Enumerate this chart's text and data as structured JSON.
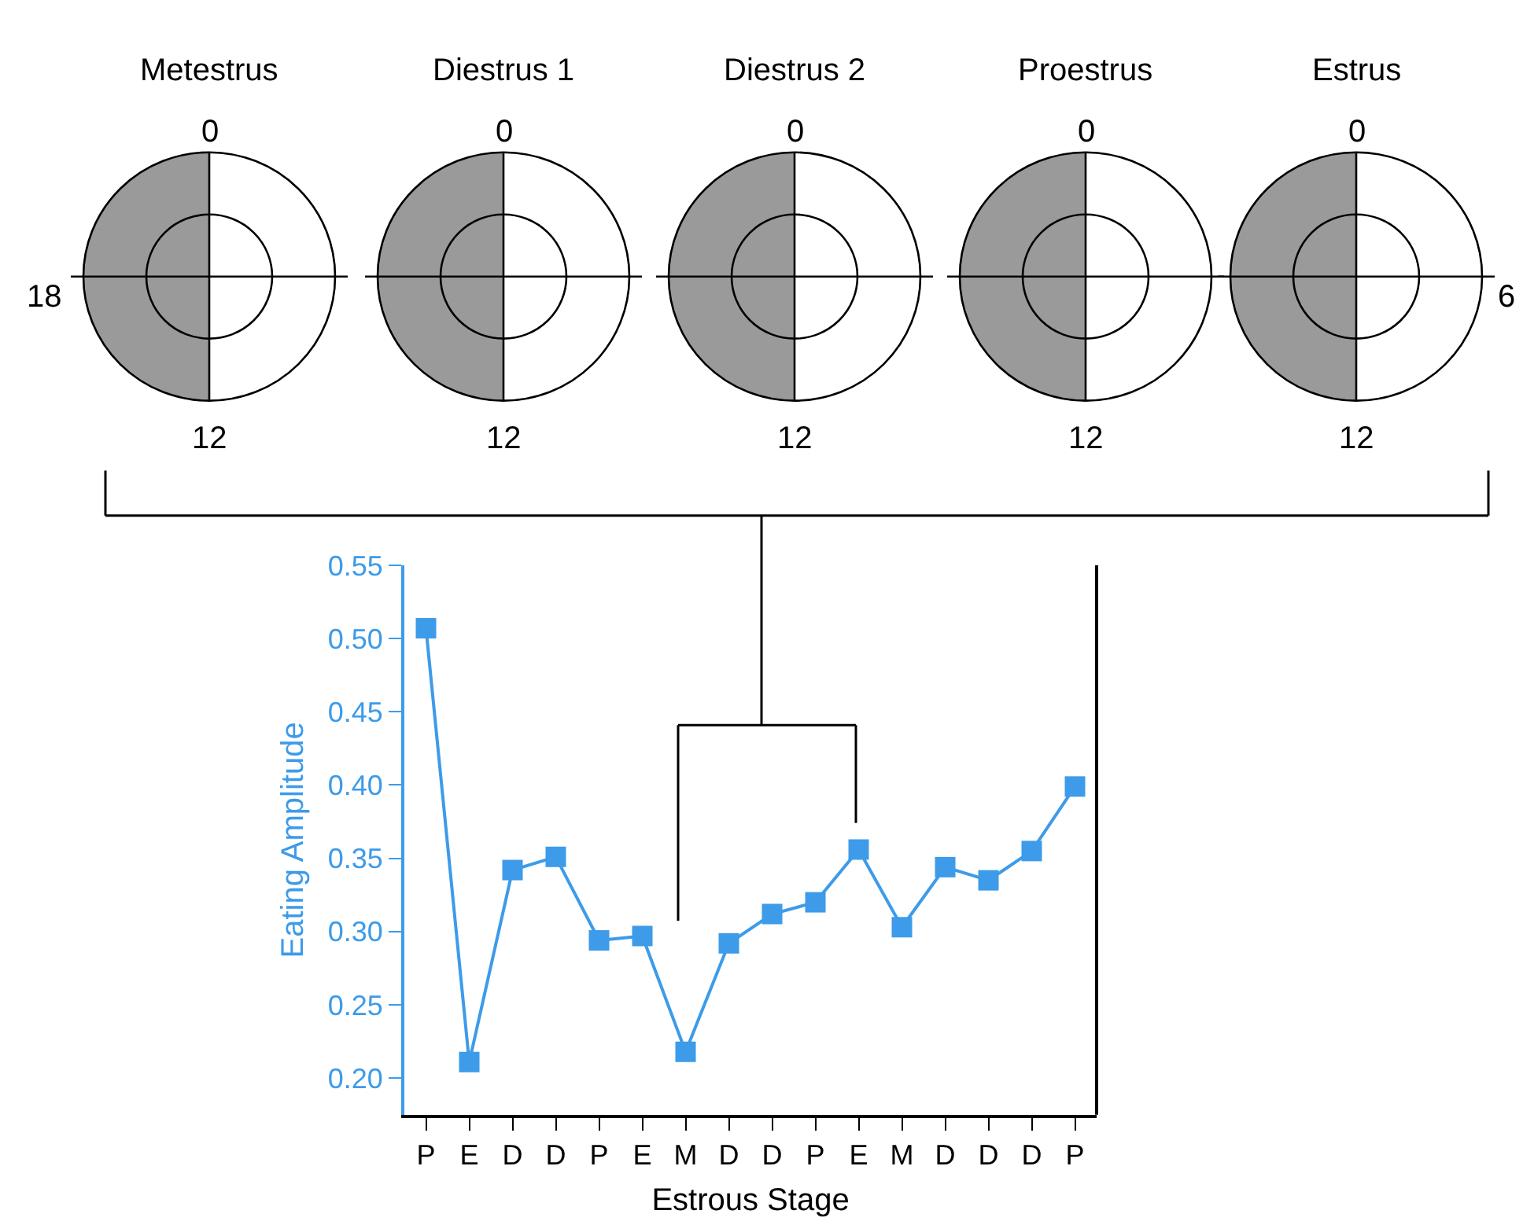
{
  "chart_data": [
    {
      "type": "other",
      "title": "Metestrus",
      "categories": [
        "0",
        null,
        "12",
        "18"
      ]
    },
    {
      "type": "other",
      "title": "Diestrus 1",
      "categories": [
        "0",
        null,
        "12",
        null
      ]
    },
    {
      "type": "other",
      "title": "Diestrus 2",
      "categories": [
        "0",
        null,
        "12",
        null
      ]
    },
    {
      "type": "other",
      "title": "Proestrus",
      "categories": [
        "0",
        null,
        "12",
        null
      ]
    },
    {
      "type": "other",
      "title": "Estrus",
      "categories": [
        "0",
        "6",
        "12",
        null
      ]
    },
    {
      "type": "line",
      "xlabel": "Estrous Stage",
      "ylabel": "Eating Amplitude",
      "categories": [
        "P",
        "E",
        "D",
        "D",
        "P",
        "E",
        "M",
        "D",
        "D",
        "P",
        "E",
        "M",
        "D",
        "D",
        "D",
        "P"
      ],
      "series": [
        {
          "color": "#3d9be9",
          "values": [
            0.507,
            0.211,
            0.342,
            0.351,
            0.294,
            0.297,
            0.218,
            0.292,
            0.312,
            0.32,
            0.356,
            0.303,
            0.344,
            0.335,
            0.355,
            0.399
          ]
        }
      ],
      "ylim": [
        0.175,
        0.55
      ],
      "yticks": [
        {
          "value": 0.2,
          "label": "0.20"
        },
        0.25,
        {
          "value": 0.3,
          "label": "0.30"
        },
        0.35,
        {
          "value": 0.4,
          "label": "0.40"
        },
        0.45,
        {
          "value": 0.5,
          "label": "0.50"
        },
        0.55
      ],
      "marker": "square",
      "line_style": "solid"
    }
  ]
}
